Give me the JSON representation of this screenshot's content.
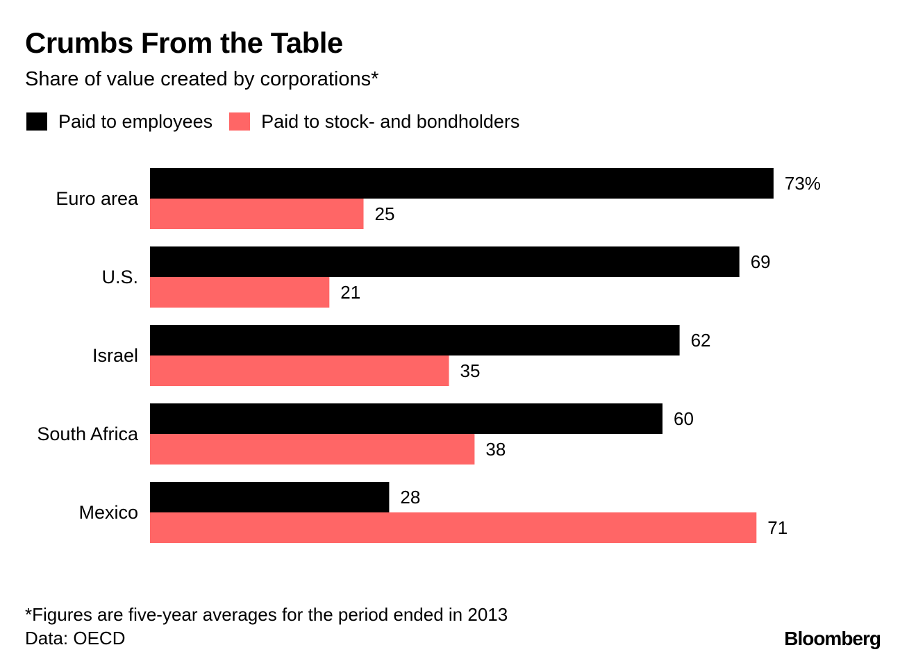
{
  "chart_data": {
    "type": "bar",
    "orientation": "horizontal",
    "title": "Crumbs From the Table",
    "subtitle": "Share of value created by corporations*",
    "categories": [
      "Euro area",
      "U.S.",
      "Israel",
      "South Africa",
      "Mexico"
    ],
    "series": [
      {
        "name": "Paid to employees",
        "color": "#000000",
        "values": [
          73,
          69,
          62,
          60,
          28
        ],
        "labels": [
          "73%",
          "69",
          "62",
          "60",
          "28"
        ]
      },
      {
        "name": "Paid to stock- and bondholders",
        "color": "#ff6666",
        "values": [
          25,
          21,
          35,
          38,
          71
        ],
        "labels": [
          "25",
          "21",
          "35",
          "38",
          "71"
        ]
      }
    ],
    "xlim": [
      0,
      80
    ],
    "grid": false,
    "legend_position": "top-left",
    "footnote": "*Figures are five-year averages for the period ended in 2013",
    "source": "Data: OECD"
  },
  "brand": "Bloomberg"
}
